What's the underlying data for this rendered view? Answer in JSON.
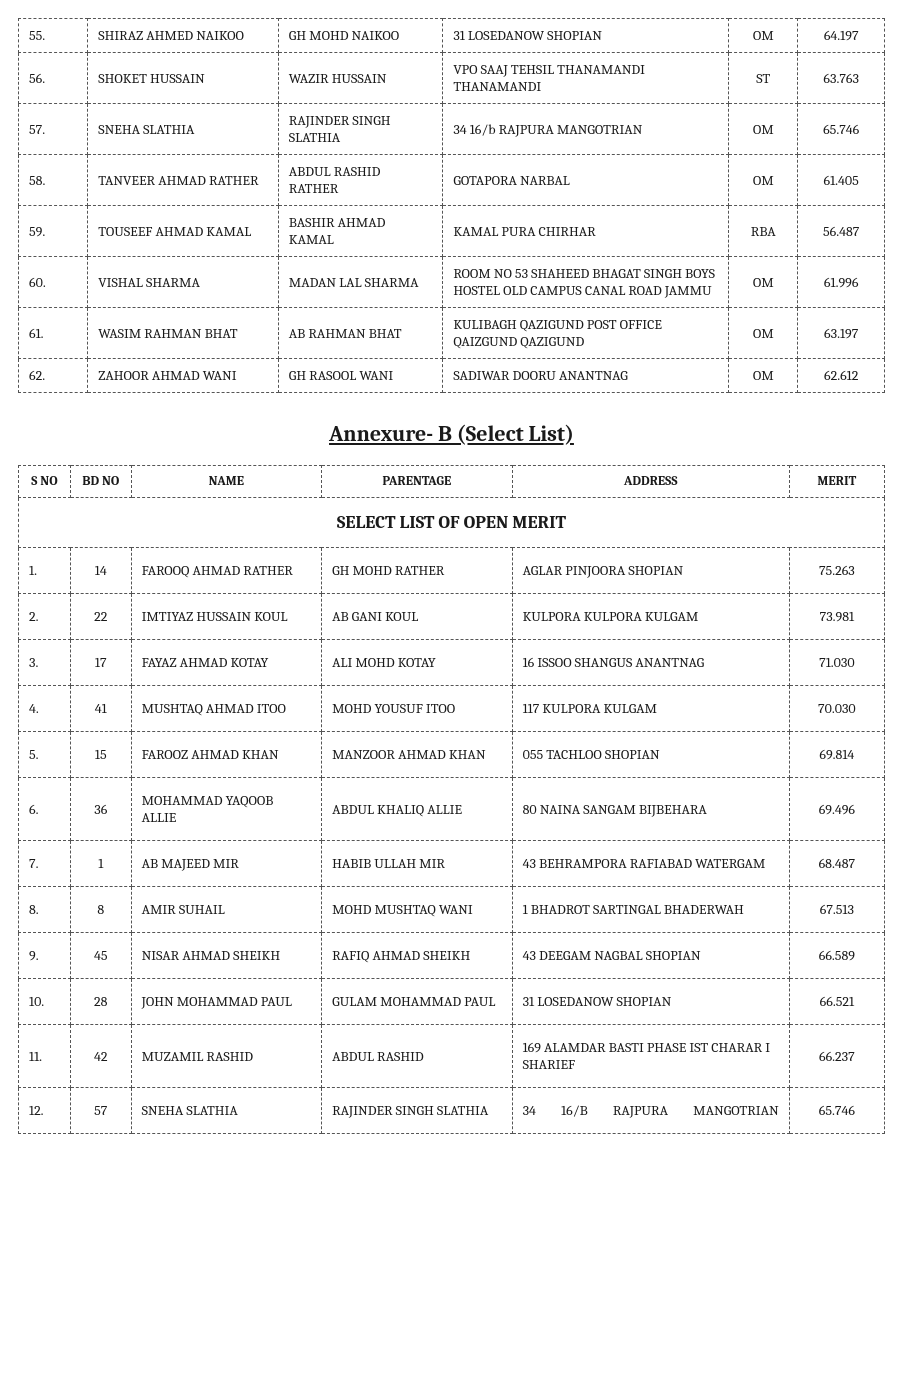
{
  "table1": {
    "rows": [
      {
        "sno": "55.",
        "name": "SHIRAZ AHMED NAIKOO",
        "parentage": "GH MOHD NAIKOO",
        "address": "31 LOSEDANOW SHOPIAN",
        "cat": "OM",
        "merit": "64.197"
      },
      {
        "sno": "56.",
        "name": "SHOKET HUSSAIN",
        "parentage": "WAZIR HUSSAIN",
        "address": "VPO SAAJ TEHSIL THANAMANDI THANAMANDI",
        "cat": "ST",
        "merit": "63.763"
      },
      {
        "sno": "57.",
        "name": "SNEHA SLATHIA",
        "parentage": "RAJINDER SINGH SLATHIA",
        "address": "34 16/b RAJPURA MANGOTRIAN",
        "cat": "OM",
        "merit": "65.746"
      },
      {
        "sno": "58.",
        "name": "TANVEER AHMAD RATHER",
        "parentage": "ABDUL RASHID RATHER",
        "address": "GOTAPORA NARBAL",
        "cat": "OM",
        "merit": "61.405"
      },
      {
        "sno": "59.",
        "name": "TOUSEEF AHMAD KAMAL",
        "parentage": "BASHIR AHMAD KAMAL",
        "address": "KAMAL PURA CHIRHAR",
        "cat": "RBA",
        "merit": "56.487"
      },
      {
        "sno": "60.",
        "name": "VISHAL SHARMA",
        "parentage": "MADAN LAL SHARMA",
        "address": "ROOM NO 53 SHAHEED BHAGAT SINGH BOYS HOSTEL OLD CAMPUS  CANAL ROAD JAMMU",
        "cat": "OM",
        "merit": "61.996"
      },
      {
        "sno": "61.",
        "name": "WASIM RAHMAN BHAT",
        "parentage": "AB RAHMAN BHAT",
        "address": "KULIBAGH QAZIGUND  POST OFFICE QAIZGUND QAZIGUND",
        "cat": "OM",
        "merit": "63.197"
      },
      {
        "sno": "62.",
        "name": "ZAHOOR AHMAD WANI",
        "parentage": "GH RASOOL WANI",
        "address": "SADIWAR DOORU ANANTNAG",
        "cat": "OM",
        "merit": "62.612"
      }
    ]
  },
  "sectionTitle": "Annexure- B (Select List)",
  "table2": {
    "headers": {
      "c1": "S NO",
      "c2": "BD NO",
      "c3": "NAME",
      "c4": "PARENTAGE",
      "c5": "ADDRESS",
      "c6": "MERIT"
    },
    "subheader": "SELECT LIST OF OPEN MERIT",
    "rows": [
      {
        "sno": "1.",
        "bd": "14",
        "name": "FAROOQ AHMAD RATHER",
        "parentage": "GH MOHD RATHER",
        "address": "AGLAR  PINJOORA  SHOPIAN",
        "merit": "75.263"
      },
      {
        "sno": "2.",
        "bd": "22",
        "name": "IMTIYAZ HUSSAIN KOUL",
        "parentage": "AB GANI KOUL",
        "address": "KULPORA KULPORA KULGAM",
        "merit": "73.981"
      },
      {
        "sno": "3.",
        "bd": "17",
        "name": "FAYAZ AHMAD KOTAY",
        "parentage": "ALI MOHD KOTAY",
        "address": "16 ISSOO SHANGUS ANANTNAG",
        "merit": "71.030"
      },
      {
        "sno": "4.",
        "bd": "41",
        "name": "MUSHTAQ AHMAD ITOO",
        "parentage": "MOHD YOUSUF ITOO",
        "address": "117 KULPORA KULGAM",
        "merit": "70.030"
      },
      {
        "sno": "5.",
        "bd": "15",
        "name": "FAROOZ AHMAD KHAN",
        "parentage": "MANZOOR AHMAD KHAN",
        "address": "055 TACHLOO SHOPIAN",
        "merit": "69.814"
      },
      {
        "sno": "6.",
        "bd": "36",
        "name": "MOHAMMAD YAQOOB ALLIE",
        "parentage": "ABDUL KHALIQ ALLIE",
        "address": "80 NAINA SANGAM BIJBEHARA",
        "merit": "69.496"
      },
      {
        "sno": "7.",
        "bd": "1",
        "name": "AB MAJEED MIR",
        "parentage": "HABIB ULLAH MIR",
        "address": "43 BEHRAMPORA RAFIABAD WATERGAM",
        "merit": "68.487"
      },
      {
        "sno": "8.",
        "bd": "8",
        "name": "AMIR SUHAIL",
        "parentage": "MOHD MUSHTAQ WANI",
        "address": "1 BHADROT SARTINGAL BHADERWAH",
        "merit": "67.513"
      },
      {
        "sno": "9.",
        "bd": "45",
        "name": "NISAR AHMAD SHEIKH",
        "parentage": "RAFIQ AHMAD SHEIKH",
        "address": "43 DEEGAM NAGBAL SHOPIAN",
        "merit": "66.589"
      },
      {
        "sno": "10.",
        "bd": "28",
        "name": "JOHN MOHAMMAD PAUL",
        "parentage": "GULAM MOHAMMAD PAUL",
        "address": "31 LOSEDANOW SHOPIAN",
        "merit": "66.521"
      },
      {
        "sno": "11.",
        "bd": "42",
        "name": "MUZAMIL RASHID",
        "parentage": "ABDUL RASHID",
        "address": "169 ALAMDAR BASTI PHASE IST CHARAR I SHARIEF",
        "merit": "66.237"
      },
      {
        "sno": "12.",
        "bd": "57",
        "name": "SNEHA SLATHIA",
        "parentage": "RAJINDER SINGH SLATHIA",
        "address": "34 16/B RAJPURA MANGOTRIAN",
        "addressJustify": true,
        "merit": "65.746"
      }
    ]
  }
}
